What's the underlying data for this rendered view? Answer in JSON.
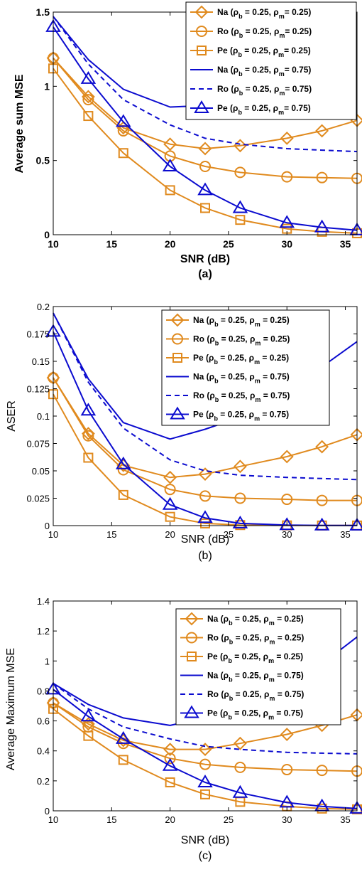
{
  "colors": {
    "orange": "#e08a1e",
    "blue": "#0b0bcf",
    "axis": "#000000"
  },
  "chart_data": [
    {
      "type": "line",
      "panel_label": "(a)",
      "xlabel": "SNR (dB)",
      "ylabel": "Average sum MSE",
      "bold_text": true,
      "xlim": [
        10,
        36
      ],
      "ylim": [
        0,
        1.5
      ],
      "xticks": [
        10,
        15,
        20,
        25,
        30,
        35
      ],
      "yticks": [
        0,
        0.5,
        1,
        1.5
      ],
      "ytick_labels": [
        "0",
        "0.5",
        "1",
        "1.5"
      ],
      "legend_placement": "top-right",
      "series": [
        {
          "name_main": "Na (ρ",
          "rb": "b",
          "mid": " = 0.25, ρ",
          "rm": "m",
          "end": "= 0.25)",
          "color": "orange",
          "dash": false,
          "marker": "diamond",
          "x": [
            10,
            13,
            16,
            20,
            23,
            26,
            30,
            33,
            36
          ],
          "y": [
            1.19,
            0.93,
            0.72,
            0.61,
            0.58,
            0.6,
            0.65,
            0.7,
            0.77
          ]
        },
        {
          "name_main": "Ro (ρ",
          "rb": "b",
          "mid": " = 0.25, ρ",
          "rm": "m",
          "end": "= 0.25)",
          "color": "orange",
          "dash": false,
          "marker": "circle",
          "x": [
            10,
            13,
            16,
            20,
            23,
            26,
            30,
            33,
            36
          ],
          "y": [
            1.19,
            0.91,
            0.7,
            0.53,
            0.46,
            0.42,
            0.39,
            0.385,
            0.38
          ]
        },
        {
          "name_main": "Pe (ρ",
          "rb": "b",
          "mid": " = 0.25, ρ",
          "rm": "m",
          "end": "= 0.25)",
          "color": "orange",
          "dash": false,
          "marker": "square",
          "x": [
            10,
            13,
            16,
            20,
            23,
            26,
            30,
            33,
            36
          ],
          "y": [
            1.12,
            0.8,
            0.55,
            0.3,
            0.18,
            0.1,
            0.04,
            0.02,
            0.01
          ]
        },
        {
          "name_main": "Na (ρ",
          "rb": "b",
          "mid": " = 0.25, ρ",
          "rm": "m",
          "end": "= 0.75)",
          "color": "blue",
          "dash": false,
          "marker": "none",
          "x": [
            10,
            13,
            16,
            20,
            23,
            26,
            30,
            33,
            36
          ],
          "y": [
            1.47,
            1.18,
            0.98,
            0.86,
            0.87,
            0.92,
            1.05,
            1.22,
            1.41
          ]
        },
        {
          "name_main": "Ro (ρ",
          "rb": "b",
          "mid": " = 0.25, ρ",
          "rm": "m",
          "end": "= 0.75)",
          "color": "blue",
          "dash": true,
          "marker": "none",
          "x": [
            10,
            13,
            16,
            20,
            23,
            26,
            30,
            33,
            36
          ],
          "y": [
            1.47,
            1.15,
            0.91,
            0.74,
            0.65,
            0.61,
            0.58,
            0.57,
            0.56
          ]
        },
        {
          "name_main": "Pe (ρ",
          "rb": "b",
          "mid": " = 0.25, ρ",
          "rm": "m",
          "end": "= 0.75)",
          "color": "blue",
          "dash": false,
          "marker": "triangle",
          "x": [
            10,
            13,
            16,
            20,
            23,
            26,
            30,
            33,
            36
          ],
          "y": [
            1.4,
            1.05,
            0.76,
            0.46,
            0.3,
            0.18,
            0.08,
            0.05,
            0.03
          ]
        }
      ]
    },
    {
      "type": "line",
      "panel_label": "(b)",
      "xlabel": "SNR (dB)",
      "ylabel": "ASER",
      "bold_text": false,
      "xlim": [
        10,
        36
      ],
      "ylim": [
        0,
        0.2
      ],
      "xticks": [
        10,
        15,
        20,
        25,
        30,
        35
      ],
      "yticks": [
        0,
        0.025,
        0.05,
        0.075,
        0.1,
        0.125,
        0.15,
        0.175,
        0.2
      ],
      "ytick_labels": [
        "0",
        "0.025",
        "0.05",
        "0.075",
        "0.1",
        "0.125",
        "0.15",
        "0.175",
        "0.2"
      ],
      "legend_placement": "top-right",
      "series": [
        {
          "name_main": "Na (ρ",
          "rb": "b",
          "mid": " = 0.25, ρ",
          "rm": "m",
          "end": " = 0.25)",
          "color": "orange",
          "dash": false,
          "marker": "diamond",
          "x": [
            10,
            13,
            16,
            20,
            23,
            26,
            30,
            33,
            36
          ],
          "y": [
            0.135,
            0.084,
            0.055,
            0.044,
            0.047,
            0.054,
            0.063,
            0.072,
            0.083
          ]
        },
        {
          "name_main": "Ro (ρ",
          "rb": "b",
          "mid": " = 0.25, ρ",
          "rm": "m",
          "end": " = 0.25)",
          "color": "orange",
          "dash": false,
          "marker": "circle",
          "x": [
            10,
            13,
            16,
            20,
            23,
            26,
            30,
            33,
            36
          ],
          "y": [
            0.135,
            0.082,
            0.051,
            0.033,
            0.027,
            0.025,
            0.024,
            0.023,
            0.023
          ]
        },
        {
          "name_main": "Pe (ρ",
          "rb": "b",
          "mid": " = 0.25, ρ",
          "rm": "m",
          "end": " = 0.25)",
          "color": "orange",
          "dash": false,
          "marker": "square",
          "x": [
            10,
            13,
            16,
            20,
            23,
            26,
            30,
            33,
            36
          ],
          "y": [
            0.12,
            0.062,
            0.028,
            0.008,
            0.002,
            0.0005,
            0.0002,
            0.0001,
            0.0001
          ]
        },
        {
          "name_main": "Na (ρ",
          "rb": "b",
          "mid": " = 0.25, ρ",
          "rm": "m",
          "end": " = 0.75)",
          "color": "blue",
          "dash": false,
          "marker": "none",
          "x": [
            10,
            13,
            16,
            20,
            23,
            26,
            30,
            33,
            36
          ],
          "y": [
            0.194,
            0.134,
            0.094,
            0.079,
            0.088,
            0.099,
            0.122,
            0.145,
            0.168
          ]
        },
        {
          "name_main": "Ro (ρ",
          "rb": "b",
          "mid": " = 0.25, ρ",
          "rm": "m",
          "end": " = 0.75)",
          "color": "blue",
          "dash": true,
          "marker": "none",
          "x": [
            10,
            13,
            16,
            20,
            23,
            26,
            30,
            33,
            36
          ],
          "y": [
            0.194,
            0.131,
            0.089,
            0.06,
            0.05,
            0.046,
            0.044,
            0.043,
            0.042
          ]
        },
        {
          "name_main": "Pe (ρ",
          "rb": "b",
          "mid": " = 0.25, ρ",
          "rm": "m",
          "end": " = 0.75)",
          "color": "blue",
          "dash": false,
          "marker": "triangle",
          "x": [
            10,
            13,
            16,
            20,
            23,
            26,
            30,
            33,
            36
          ],
          "y": [
            0.177,
            0.105,
            0.056,
            0.019,
            0.007,
            0.002,
            0.0005,
            0.0002,
            0.0001
          ]
        }
      ]
    },
    {
      "type": "line",
      "panel_label": "(c)",
      "xlabel": "SNR (dB)",
      "ylabel": "Average Maximum MSE",
      "bold_text": false,
      "xlim": [
        10,
        36
      ],
      "ylim": [
        0,
        1.4
      ],
      "xticks": [
        10,
        15,
        20,
        25,
        30,
        35
      ],
      "yticks": [
        0,
        0.2,
        0.4,
        0.6,
        0.8,
        1,
        1.2,
        1.4
      ],
      "ytick_labels": [
        "0",
        "0.2",
        "0.4",
        "0.6",
        "0.8",
        "1",
        "1.2",
        "1.4"
      ],
      "legend_placement": "top-right",
      "series": [
        {
          "name_main": "Na (ρ",
          "rb": "b",
          "mid": " = 0.25, ρ",
          "rm": "m",
          "end": " = 0.25)",
          "color": "orange",
          "dash": false,
          "marker": "diamond",
          "x": [
            10,
            13,
            16,
            20,
            23,
            26,
            30,
            33,
            36
          ],
          "y": [
            0.72,
            0.58,
            0.47,
            0.41,
            0.41,
            0.45,
            0.51,
            0.57,
            0.64
          ]
        },
        {
          "name_main": "Ro (ρ",
          "rb": "b",
          "mid": " = 0.25, ρ",
          "rm": "m",
          "end": " = 0.25)",
          "color": "orange",
          "dash": false,
          "marker": "circle",
          "x": [
            10,
            13,
            16,
            20,
            23,
            26,
            30,
            33,
            36
          ],
          "y": [
            0.72,
            0.56,
            0.45,
            0.35,
            0.31,
            0.29,
            0.275,
            0.27,
            0.265
          ]
        },
        {
          "name_main": "Pe (ρ",
          "rb": "b",
          "mid": " = 0.25, ρ",
          "rm": "m",
          "end": " = 0.25)",
          "color": "orange",
          "dash": false,
          "marker": "square",
          "x": [
            10,
            13,
            16,
            20,
            23,
            26,
            30,
            33,
            36
          ],
          "y": [
            0.68,
            0.5,
            0.34,
            0.19,
            0.11,
            0.06,
            0.03,
            0.015,
            0.01
          ]
        },
        {
          "name_main": "Na (ρ",
          "rb": "b",
          "mid": " = 0.25, ρ",
          "rm": "m",
          "end": " = 0.75)",
          "color": "blue",
          "dash": false,
          "marker": "none",
          "x": [
            10,
            13,
            16,
            20,
            23,
            26,
            30,
            33,
            36
          ],
          "y": [
            0.85,
            0.71,
            0.62,
            0.57,
            0.62,
            0.7,
            0.83,
            0.98,
            1.16
          ]
        },
        {
          "name_main": "Ro (ρ",
          "rb": "b",
          "mid": " = 0.25, ρ",
          "rm": "m",
          "end": " = 0.75)",
          "color": "blue",
          "dash": true,
          "marker": "none",
          "x": [
            10,
            13,
            16,
            20,
            23,
            26,
            30,
            33,
            36
          ],
          "y": [
            0.85,
            0.68,
            0.56,
            0.48,
            0.43,
            0.41,
            0.39,
            0.385,
            0.38
          ]
        },
        {
          "name_main": "Pe (ρ",
          "rb": "b",
          "mid": " = 0.25, ρ",
          "rm": "m",
          "end": " = 0.75)",
          "color": "blue",
          "dash": false,
          "marker": "triangle",
          "x": [
            10,
            13,
            16,
            20,
            23,
            26,
            30,
            33,
            36
          ],
          "y": [
            0.81,
            0.63,
            0.48,
            0.3,
            0.19,
            0.12,
            0.055,
            0.03,
            0.015
          ]
        }
      ]
    }
  ]
}
